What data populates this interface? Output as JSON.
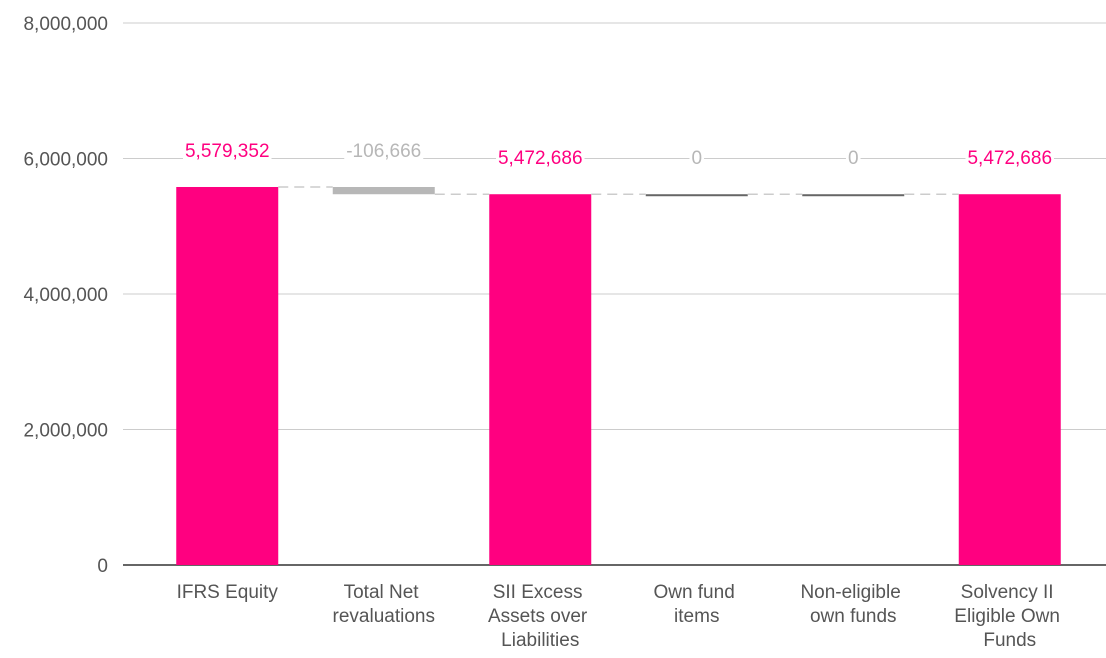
{
  "chart_data": {
    "type": "waterfall",
    "categories": [
      "IFRS Equity",
      "Total Net revaluations",
      "SII Excess Assets over Liabilities",
      "Own fund items",
      "Non-eligible own funds",
      "Solvency II Eligible Own Funds"
    ],
    "values": [
      5579352,
      -106666,
      5472686,
      0,
      0,
      5472686
    ],
    "value_labels": [
      "5,579,352",
      "-106,666",
      "5,472,686",
      "0",
      "0",
      "5,472,686"
    ],
    "totals": [
      true,
      false,
      true,
      false,
      false,
      true
    ],
    "colors": [
      "#ff0080",
      "#b7b7b7",
      "#ff0080",
      "#666666",
      "#666666",
      "#ff0080"
    ],
    "ylim": [
      0,
      8000000
    ],
    "yticks": [
      {
        "value": 0,
        "label": "0"
      },
      {
        "value": 2000000,
        "label": "2,000,000"
      },
      {
        "value": 4000000,
        "label": "4,000,000"
      },
      {
        "value": 6000000,
        "label": "6,000,000"
      },
      {
        "value": 8000000,
        "label": "8,000,000"
      }
    ],
    "grid": true
  }
}
